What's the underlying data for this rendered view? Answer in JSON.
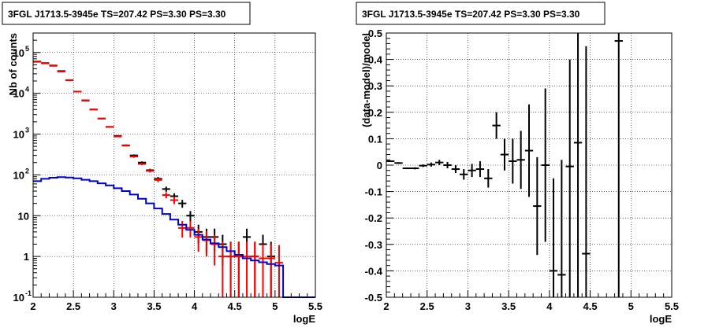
{
  "chart_data": [
    {
      "type": "scatter",
      "title": "3FGL J1713.5-3945e TS=207.42 PS=3.30 PS=3.30",
      "xlabel": "logE",
      "ylabel": "Nb of counts",
      "xlim": [
        2,
        5.5
      ],
      "ylim": [
        0.1,
        300000
      ],
      "yscale": "log",
      "grid": true,
      "xticks": [
        "2",
        "2.5",
        "3",
        "3.5",
        "4",
        "4.5",
        "5",
        "5.5"
      ],
      "yticks": [
        {
          "v": 0.1,
          "label": "10",
          "exp": "-1"
        },
        {
          "v": 1,
          "label": "1",
          "exp": ""
        },
        {
          "v": 10,
          "label": "10",
          "exp": ""
        },
        {
          "v": 100,
          "label": "10",
          "exp": "2"
        },
        {
          "v": 1000,
          "label": "10",
          "exp": "3"
        },
        {
          "v": 10000,
          "label": "10",
          "exp": "4"
        },
        {
          "v": 100000,
          "label": "10",
          "exp": "5"
        }
      ],
      "series": [
        {
          "color": "#000000",
          "kind": "errorbar",
          "points": [
            {
              "x": 2.05,
              "y": 60000,
              "lo": 59700,
              "hi": 60300
            },
            {
              "x": 2.15,
              "y": 55000,
              "lo": 54700,
              "hi": 55300
            },
            {
              "x": 2.25,
              "y": 48000,
              "lo": 47700,
              "hi": 48300
            },
            {
              "x": 2.35,
              "y": 35000,
              "lo": 34800,
              "hi": 35200
            },
            {
              "x": 2.45,
              "y": 21000,
              "lo": 20850,
              "hi": 21150
            },
            {
              "x": 2.55,
              "y": 11000,
              "lo": 10900,
              "hi": 11100
            },
            {
              "x": 2.65,
              "y": 6700,
              "lo": 6620,
              "hi": 6780
            },
            {
              "x": 2.75,
              "y": 4000,
              "lo": 3940,
              "hi": 4060
            },
            {
              "x": 2.85,
              "y": 2400,
              "lo": 2350,
              "hi": 2450
            },
            {
              "x": 2.95,
              "y": 1500,
              "lo": 1460,
              "hi": 1540
            },
            {
              "x": 3.05,
              "y": 900,
              "lo": 870,
              "hi": 930
            },
            {
              "x": 3.15,
              "y": 530,
              "lo": 507,
              "hi": 553
            },
            {
              "x": 3.25,
              "y": 300,
              "lo": 283,
              "hi": 317
            },
            {
              "x": 3.35,
              "y": 200,
              "lo": 186,
              "hi": 214
            },
            {
              "x": 3.45,
              "y": 130,
              "lo": 119,
              "hi": 141
            },
            {
              "x": 3.55,
              "y": 80,
              "lo": 71,
              "hi": 89
            },
            {
              "x": 3.65,
              "y": 45,
              "lo": 38.5,
              "hi": 51.5
            },
            {
              "x": 3.75,
              "y": 30,
              "lo": 24.7,
              "hi": 35.3
            },
            {
              "x": 3.85,
              "y": 20,
              "lo": 15.6,
              "hi": 24.4
            },
            {
              "x": 3.95,
              "y": 10,
              "lo": 7,
              "hi": 13
            },
            {
              "x": 4.05,
              "y": 4,
              "lo": 2.1,
              "hi": 6
            },
            {
              "x": 4.15,
              "y": 3,
              "lo": 1.3,
              "hi": 4.8
            },
            {
              "x": 4.25,
              "y": 3,
              "lo": 1.3,
              "hi": 4.8
            },
            {
              "x": 4.35,
              "y": 2,
              "lo": 0.6,
              "hi": 3.4
            },
            {
              "x": 4.45,
              "y": 1,
              "lo": 0.1,
              "hi": 2.3
            },
            {
              "x": 4.55,
              "y": 1,
              "lo": 0.1,
              "hi": 2.3
            },
            {
              "x": 4.65,
              "y": 3,
              "lo": 1.3,
              "hi": 4.8
            },
            {
              "x": 4.75,
              "y": 1,
              "lo": 0.1,
              "hi": 2.3
            },
            {
              "x": 4.85,
              "y": 2,
              "lo": 0.6,
              "hi": 3.4
            },
            {
              "x": 4.95,
              "y": 1,
              "lo": 0.1,
              "hi": 2.3
            }
          ]
        },
        {
          "color": "#ff0000",
          "kind": "errorbar",
          "points": [
            {
              "x": 2.05,
              "y": 59000,
              "lo": 58700,
              "hi": 59300
            },
            {
              "x": 2.15,
              "y": 54000,
              "lo": 53700,
              "hi": 54300
            },
            {
              "x": 2.25,
              "y": 47000,
              "lo": 46700,
              "hi": 47300
            },
            {
              "x": 2.35,
              "y": 34000,
              "lo": 33800,
              "hi": 34200
            },
            {
              "x": 2.45,
              "y": 20800,
              "lo": 20650,
              "hi": 20950
            },
            {
              "x": 2.55,
              "y": 11000,
              "lo": 10900,
              "hi": 11100
            },
            {
              "x": 2.65,
              "y": 6600,
              "lo": 6520,
              "hi": 6680
            },
            {
              "x": 2.75,
              "y": 4000,
              "lo": 3940,
              "hi": 4060
            },
            {
              "x": 2.85,
              "y": 2400,
              "lo": 2350,
              "hi": 2450
            },
            {
              "x": 2.95,
              "y": 1500,
              "lo": 1460,
              "hi": 1540
            },
            {
              "x": 3.05,
              "y": 870,
              "lo": 840,
              "hi": 900
            },
            {
              "x": 3.15,
              "y": 520,
              "lo": 497,
              "hi": 543
            },
            {
              "x": 3.25,
              "y": 280,
              "lo": 263,
              "hi": 297
            },
            {
              "x": 3.35,
              "y": 185,
              "lo": 172,
              "hi": 198
            },
            {
              "x": 3.45,
              "y": 125,
              "lo": 114,
              "hi": 136
            },
            {
              "x": 3.55,
              "y": 75,
              "lo": 66,
              "hi": 84
            },
            {
              "x": 3.65,
              "y": 32,
              "lo": 26.5,
              "hi": 37.5
            },
            {
              "x": 3.75,
              "y": 24,
              "lo": 19.2,
              "hi": 28.8
            },
            {
              "x": 3.85,
              "y": 5,
              "lo": 2.9,
              "hi": 7.4
            },
            {
              "x": 3.95,
              "y": 5,
              "lo": 2.9,
              "hi": 7.4
            },
            {
              "x": 4.05,
              "y": 3,
              "lo": 1.3,
              "hi": 4.8
            },
            {
              "x": 4.15,
              "y": 2.5,
              "lo": 1.0,
              "hi": 4.2
            },
            {
              "x": 4.25,
              "y": 2,
              "lo": 0.6,
              "hi": 3.4
            },
            {
              "x": 4.35,
              "y": 1,
              "lo": 0.1,
              "hi": 2.3
            },
            {
              "x": 4.45,
              "y": 1,
              "lo": 0.1,
              "hi": 2.3
            },
            {
              "x": 4.55,
              "y": 1,
              "lo": 0.1,
              "hi": 2.3
            },
            {
              "x": 4.65,
              "y": 1,
              "lo": 0.1,
              "hi": 2.3
            },
            {
              "x": 4.75,
              "y": 1,
              "lo": 0.1,
              "hi": 2.3
            },
            {
              "x": 4.85,
              "y": 0.9,
              "lo": 0.1,
              "hi": 2.0
            },
            {
              "x": 4.95,
              "y": 0.9,
              "lo": 0.1,
              "hi": 2.0
            },
            {
              "x": 5.05,
              "y": 0.7,
              "lo": 0.1,
              "hi": 1.9
            }
          ]
        },
        {
          "color": "#0000cc",
          "kind": "step",
          "edges": [
            2.0,
            2.1,
            2.2,
            2.3,
            2.4,
            2.5,
            2.6,
            2.7,
            2.8,
            2.9,
            3.0,
            3.1,
            3.2,
            3.3,
            3.4,
            3.5,
            3.6,
            3.7,
            3.8,
            3.9,
            4.0,
            4.1,
            4.2,
            4.3,
            4.4,
            4.5,
            4.6,
            4.7,
            4.8,
            4.9,
            5.0,
            5.1,
            5.2,
            5.3,
            5.4,
            5.5
          ],
          "values": [
            70,
            80,
            85,
            88,
            86,
            82,
            76,
            70,
            62,
            55,
            47,
            40,
            33,
            26,
            20,
            15,
            11,
            8,
            6,
            4.5,
            3.4,
            2.6,
            2.1,
            1.7,
            1.35,
            1.1,
            0.9,
            0.8,
            0.72,
            0.65,
            0.6,
            0.1,
            0.1,
            0.1,
            0.1
          ]
        }
      ]
    },
    {
      "type": "scatter",
      "title": "3FGL J1713.5-3945e TS=207.42 PS=3.30 PS=3.30",
      "xlabel": "logE",
      "ylabel": "(data-model)/model",
      "xlim": [
        2,
        5.5
      ],
      "ylim": [
        -0.5,
        0.5
      ],
      "grid": true,
      "xticks": [
        "2",
        "2.5",
        "3",
        "3.5",
        "4",
        "4.5",
        "5",
        "5.5"
      ],
      "yticks": [
        "-0.5",
        "-0.4",
        "-0.3",
        "-0.2",
        "-0.1",
        "0",
        "0.1",
        "0.2",
        "0.3",
        "0.4",
        "0.5"
      ],
      "series": [
        {
          "color": "#000000",
          "kind": "errorbar",
          "points": [
            {
              "x": 2.05,
              "y": 0.015,
              "lo": 0.012,
              "hi": 0.018
            },
            {
              "x": 2.15,
              "y": 0.008,
              "lo": 0.005,
              "hi": 0.011
            },
            {
              "x": 2.25,
              "y": -0.012,
              "lo": -0.015,
              "hi": -0.009
            },
            {
              "x": 2.35,
              "y": -0.012,
              "lo": -0.016,
              "hi": -0.008
            },
            {
              "x": 2.45,
              "y": -0.002,
              "lo": -0.007,
              "hi": 0.003
            },
            {
              "x": 2.55,
              "y": 0.002,
              "lo": -0.006,
              "hi": 0.01
            },
            {
              "x": 2.65,
              "y": 0.01,
              "lo": 0.0,
              "hi": 0.02
            },
            {
              "x": 2.75,
              "y": 0.0,
              "lo": -0.012,
              "hi": 0.012
            },
            {
              "x": 2.85,
              "y": -0.015,
              "lo": -0.03,
              "hi": 0.0
            },
            {
              "x": 2.95,
              "y": -0.035,
              "lo": -0.055,
              "hi": -0.015
            },
            {
              "x": 3.05,
              "y": -0.02,
              "lo": -0.045,
              "hi": 0.005
            },
            {
              "x": 3.15,
              "y": -0.015,
              "lo": -0.045,
              "hi": 0.015
            },
            {
              "x": 3.25,
              "y": -0.05,
              "lo": -0.085,
              "hi": -0.015
            },
            {
              "x": 3.35,
              "y": 0.15,
              "lo": 0.1,
              "hi": 0.2
            },
            {
              "x": 3.45,
              "y": 0.04,
              "lo": -0.02,
              "hi": 0.1
            },
            {
              "x": 3.55,
              "y": 0.015,
              "lo": -0.07,
              "hi": 0.1
            },
            {
              "x": 3.65,
              "y": 0.02,
              "lo": -0.09,
              "hi": 0.13
            },
            {
              "x": 3.75,
              "y": 0.055,
              "lo": -0.12,
              "hi": 0.23
            },
            {
              "x": 3.85,
              "y": -0.155,
              "lo": -0.34,
              "hi": 0.03
            },
            {
              "x": 3.95,
              "y": 0.0,
              "lo": -0.29,
              "hi": 0.29
            },
            {
              "x": 4.05,
              "y": -0.4,
              "lo": -0.5,
              "hi": -0.05
            },
            {
              "x": 4.15,
              "y": -0.415,
              "lo": -0.5,
              "hi": 0.02
            },
            {
              "x": 4.25,
              "y": -0.005,
              "lo": -0.5,
              "hi": 0.4
            },
            {
              "x": 4.35,
              "y": 0.085,
              "lo": -0.5,
              "hi": 0.5
            },
            {
              "x": 4.45,
              "y": -0.335,
              "lo": -0.5,
              "hi": 0.45
            },
            {
              "x": 4.85,
              "y": 0.47,
              "lo": -0.5,
              "hi": 0.5
            }
          ]
        }
      ]
    }
  ]
}
